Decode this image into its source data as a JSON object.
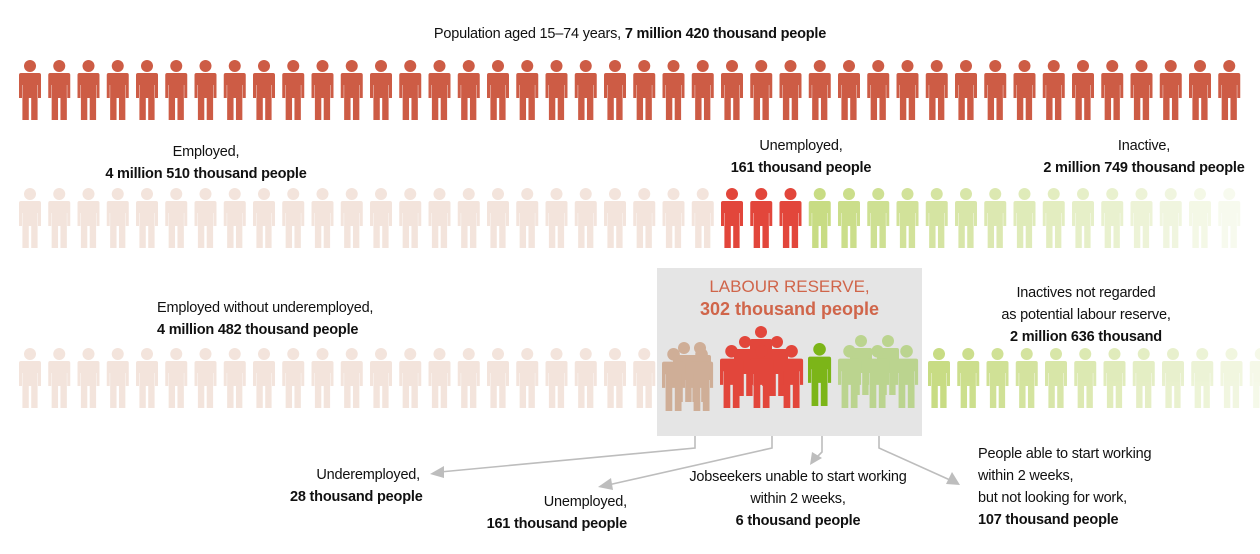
{
  "title": {
    "text": "Population aged 15–74 years,",
    "value": "7 million 420 thousand people"
  },
  "categories": {
    "employed": {
      "label": "Employed,",
      "value": "4 million 510 thousand people"
    },
    "unemployed": {
      "label": "Unemployed,",
      "value": "161 thousand people"
    },
    "inactive": {
      "label": "Inactive,",
      "value": "2 million 749 thousand people"
    }
  },
  "reserve": {
    "label": "LABOUR RESERVE,",
    "value": "302 thousand people"
  },
  "breakdown": {
    "employed_without": {
      "line1": "Employed without underemployed,",
      "value": "4 million 482 thousand people"
    },
    "inactive_not_reserve": {
      "line1": "Inactives not regarded",
      "line2": "as potential labour reserve,",
      "value": "2 million 636 thousand"
    }
  },
  "reserve_parts": {
    "underemployed": {
      "label": "Underemployed,",
      "value": "28 thousand people"
    },
    "unemployed": {
      "label": "Unemployed,",
      "value": "161 thousand people"
    },
    "jobseekers": {
      "line1": "Jobseekers unable to start working",
      "line2": "within 2 weeks,",
      "value": "6 thousand people"
    },
    "able": {
      "line1": "People able to start working",
      "line2": "within 2 weeks,",
      "line3": "but not looking for work,",
      "value": "107 thousand people"
    }
  },
  "colors": {
    "population": "#cd5c45",
    "employed_faded": "#f3e4dc",
    "unemployed": "#e2463b",
    "inactive": "#c8dc84",
    "underemployed": "#cfae97",
    "jobseeker": "#7cb518",
    "able": "#bbd48f",
    "reserve_title": "#d0654a",
    "connector": "#bdbdbd"
  }
}
